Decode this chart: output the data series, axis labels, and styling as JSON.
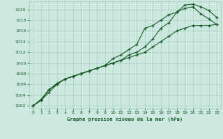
{
  "title": "Graphe pression niveau de la mer (hPa)",
  "background_color": "#cce8e0",
  "grid_color": "#99ccbb",
  "line_color": "#1a5c28",
  "xlim": [
    -0.5,
    23.5
  ],
  "ylim": [
    1001.5,
    1021.5
  ],
  "yticks": [
    1002,
    1004,
    1006,
    1008,
    1010,
    1012,
    1014,
    1016,
    1018,
    1020
  ],
  "xticks": [
    0,
    1,
    2,
    3,
    4,
    5,
    6,
    7,
    8,
    9,
    10,
    11,
    12,
    13,
    14,
    15,
    16,
    17,
    18,
    19,
    20,
    21,
    22,
    23
  ],
  "series1": [
    1002.0,
    1003.2,
    1005.0,
    1006.0,
    1007.0,
    1007.5,
    1008.0,
    1008.5,
    1009.0,
    1009.5,
    1010.8,
    1011.5,
    1012.5,
    1013.5,
    1016.5,
    1017.0,
    1018.0,
    1019.0,
    1019.5,
    1020.2,
    1020.5,
    1019.2,
    1018.2,
    1017.2
  ],
  "series2": [
    1002.0,
    1003.0,
    1005.0,
    1006.2,
    1007.0,
    1007.5,
    1008.0,
    1008.5,
    1009.0,
    1009.5,
    1010.0,
    1010.5,
    1011.5,
    1012.0,
    1013.0,
    1014.5,
    1016.5,
    1017.5,
    1019.5,
    1020.8,
    1021.0,
    1020.5,
    1019.8,
    1018.5
  ],
  "series3": [
    1002.0,
    1003.0,
    1004.5,
    1006.0,
    1007.0,
    1007.5,
    1008.0,
    1008.5,
    1009.0,
    1009.5,
    1010.0,
    1010.5,
    1011.0,
    1011.5,
    1012.0,
    1013.0,
    1014.0,
    1015.0,
    1016.0,
    1016.5,
    1017.0,
    1017.0,
    1017.0,
    1017.2
  ]
}
